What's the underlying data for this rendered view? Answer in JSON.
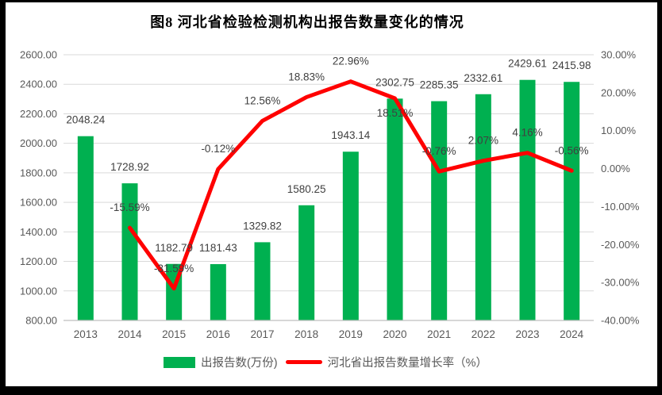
{
  "page": {
    "title": "图8 河北省检验检测机构出报告数量变化的情况"
  },
  "chart_data": {
    "type": "bar",
    "subtype": "bar-line-combo",
    "title": "图8 河北省检验检测机构出报告数量变化的情况",
    "categories": [
      "2013",
      "2014",
      "2015",
      "2016",
      "2017",
      "2018",
      "2019",
      "2020",
      "2021",
      "2022",
      "2023",
      "2024"
    ],
    "series": [
      {
        "name": "出报告数(万份)",
        "type": "bar",
        "axis": "left",
        "color": "#00B050",
        "values": [
          2048.24,
          1728.92,
          1182.79,
          1181.43,
          1329.82,
          1580.25,
          1943.14,
          2302.75,
          2285.35,
          2332.61,
          2429.61,
          2415.98
        ],
        "labels": [
          "2048.24",
          "1728.92",
          "1182.79",
          "1181.43",
          "1329.82",
          "1580.25",
          "1943.14",
          "2302.75",
          "2285.35",
          "2332.61",
          "2429.61",
          "2415.98"
        ]
      },
      {
        "name": "河北省出报告数量增长率（%）",
        "type": "line",
        "axis": "right",
        "color": "#FF0000",
        "values": [
          null,
          -15.59,
          -31.59,
          -0.12,
          12.56,
          18.83,
          22.96,
          18.51,
          -0.76,
          2.07,
          4.16,
          -0.56
        ],
        "labels": [
          null,
          "-15.59%",
          "-31.59%",
          "-0.12%",
          "12.56%",
          "18.83%",
          "22.96%",
          "18.51%",
          "-0.76%",
          "2.07%",
          "4.16%",
          "-0.56%"
        ],
        "labels_below_point": [
          "2020"
        ]
      }
    ],
    "left_axis": {
      "min": 800,
      "max": 2600,
      "step": 200,
      "ticks": [
        "2600.00",
        "2400.00",
        "2200.00",
        "2000.00",
        "1800.00",
        "1600.00",
        "1400.00",
        "1200.00",
        "1000.00",
        "800.00"
      ]
    },
    "right_axis": {
      "min": -40,
      "max": 30,
      "step": 10,
      "ticks": [
        "30.00%",
        "20.00%",
        "10.00%",
        "0.00%",
        "-10.00%",
        "-20.00%",
        "-30.00%",
        "-40.00%"
      ]
    },
    "grid": true,
    "legend_position": "bottom"
  },
  "legend": {
    "items": [
      {
        "label": "出报告数(万份)",
        "type": "bar",
        "color": "#00B050"
      },
      {
        "label": "河北省出报告数量增长率（%）",
        "type": "line",
        "color": "#FF0000"
      }
    ]
  },
  "colors": {
    "bar": "#00B050",
    "line": "#FF0000",
    "grid": "#D9D9D9",
    "axis_line": "#BFBFBF",
    "axis_text": "#595959",
    "data_label": "#404040",
    "title_text": "#000000",
    "frame": "#000000",
    "panel": "#FFFFFF"
  }
}
